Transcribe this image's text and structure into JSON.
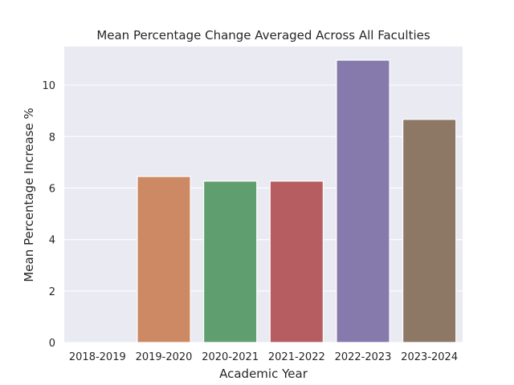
{
  "chart_data": {
    "type": "bar",
    "title": "Mean Percentage Change Averaged Across All Faculties",
    "xlabel": "Academic Year",
    "ylabel": "Mean Percentage Increase %",
    "categories": [
      "2018-2019",
      "2019-2020",
      "2020-2021",
      "2021-2022",
      "2022-2023",
      "2023-2024"
    ],
    "values": [
      0,
      6.45,
      6.27,
      6.27,
      10.97,
      8.67
    ],
    "ylim": [
      0,
      11.5
    ],
    "yticks": [
      0,
      2,
      4,
      6,
      8,
      10
    ],
    "grid": true,
    "colors": [
      "#4c72b0",
      "#cc8963",
      "#5f9e6e",
      "#b55d60",
      "#857aab",
      "#8d7866"
    ],
    "background": "#eaeaf2"
  }
}
